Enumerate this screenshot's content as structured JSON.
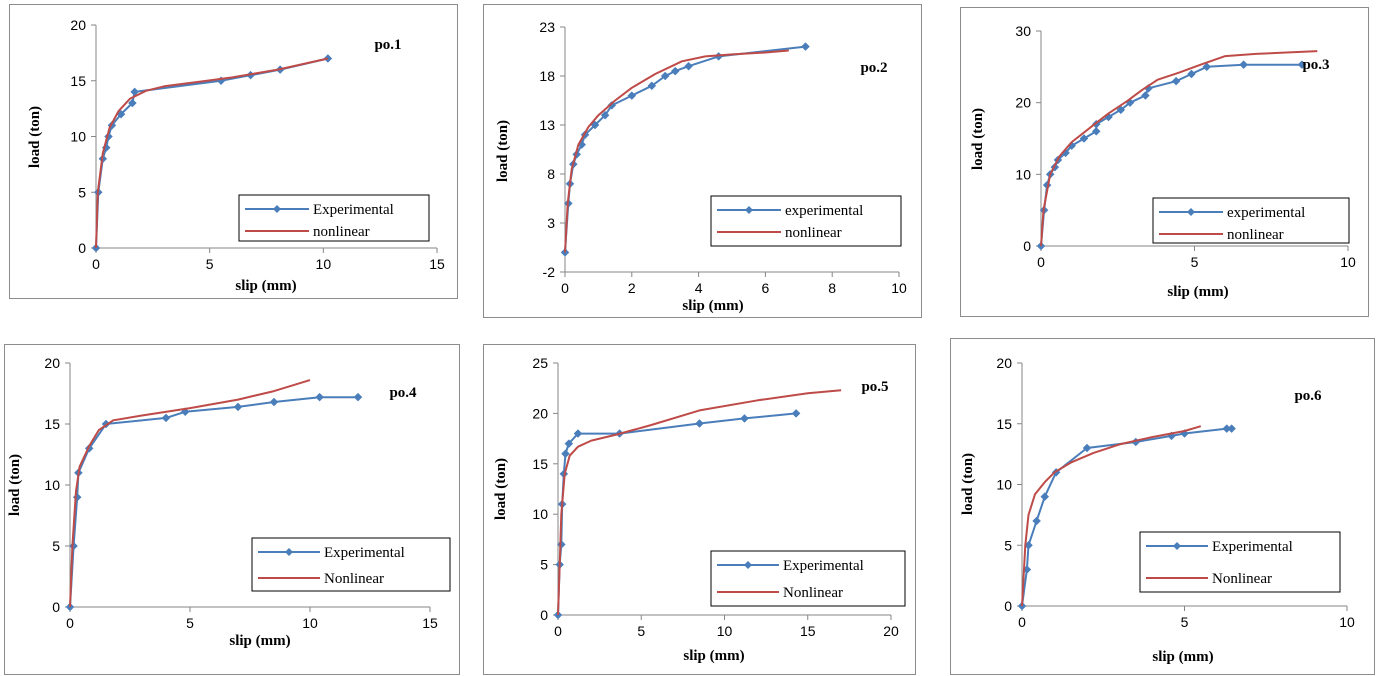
{
  "colors": {
    "experimental": "#4a7ebb",
    "nonlinear": "#be4b48",
    "axis": "#868686",
    "frame": "#8c8c8c"
  },
  "chart_data": [
    {
      "type": "line",
      "title": "po.1",
      "xlabel": "slip (mm)",
      "ylabel": "load (ton)",
      "xlim": [
        0,
        15
      ],
      "ylim": [
        0,
        20
      ],
      "xticks": [
        0,
        5,
        10,
        15
      ],
      "xtick_labels": [
        "0",
        "5",
        "10",
        "15"
      ],
      "yticks": [
        0,
        5,
        10,
        15,
        20
      ],
      "ytick_labels": [
        "0",
        "5",
        "10",
        "15",
        "20"
      ],
      "legend_position": "bottom-right",
      "series": [
        {
          "name": "Experimental",
          "marker": "diamond",
          "x": [
            0,
            0.1,
            0.3,
            0.45,
            0.55,
            0.7,
            1.1,
            1.6,
            1.7,
            5.5,
            6.8,
            8.1,
            10.2
          ],
          "y": [
            0,
            5,
            8,
            9,
            10,
            11,
            12,
            13,
            14,
            15,
            15.5,
            16,
            17
          ]
        },
        {
          "name": "nonlinear",
          "marker": "none",
          "x": [
            0,
            0.08,
            0.3,
            0.6,
            1.0,
            1.5,
            2.2,
            3.0,
            4.5,
            6.0,
            8.0,
            10.2
          ],
          "y": [
            0,
            5,
            8.5,
            10.8,
            12.3,
            13.4,
            14.1,
            14.5,
            14.9,
            15.3,
            16,
            17
          ]
        }
      ]
    },
    {
      "type": "line",
      "title": "po.2",
      "xlabel": "slip (mm)",
      "ylabel": "load (ton)",
      "xlim": [
        0,
        10
      ],
      "ylim": [
        -2,
        23
      ],
      "xticks": [
        0,
        2,
        4,
        6,
        8,
        10
      ],
      "xtick_labels": [
        "0",
        "2",
        "4",
        "6",
        "8",
        "10"
      ],
      "yticks": [
        -2,
        3,
        8,
        13,
        18,
        23
      ],
      "ytick_labels": [
        "-2",
        "3",
        "8",
        "13",
        "18",
        "23"
      ],
      "legend_position": "bottom-right",
      "series": [
        {
          "name": "experimental",
          "marker": "diamond",
          "x": [
            0,
            0.1,
            0.15,
            0.25,
            0.35,
            0.5,
            0.6,
            0.9,
            1.2,
            1.4,
            2.0,
            2.6,
            3.0,
            3.3,
            3.7,
            4.6,
            7.2
          ],
          "y": [
            0,
            5,
            7,
            9,
            10,
            11,
            12,
            13,
            14,
            15,
            16,
            17,
            18,
            18.5,
            19,
            20,
            21
          ]
        },
        {
          "name": "nonlinear",
          "marker": "none",
          "x": [
            0,
            0.08,
            0.2,
            0.4,
            0.7,
            1.0,
            1.5,
            2.0,
            2.7,
            3.5,
            4.2,
            5.0,
            6.0,
            6.7
          ],
          "y": [
            0,
            5,
            8.5,
            11,
            12.8,
            14,
            15.5,
            16.8,
            18.2,
            19.5,
            20,
            20.2,
            20.4,
            20.6
          ]
        }
      ]
    },
    {
      "type": "line",
      "title": "po.3",
      "xlabel": "slip (mm)",
      "ylabel": "load (ton)",
      "xlim": [
        0,
        10
      ],
      "ylim": [
        0,
        30
      ],
      "xticks": [
        0,
        5,
        10
      ],
      "xtick_labels": [
        "0",
        "5",
        "10"
      ],
      "yticks": [
        0,
        10,
        20,
        30
      ],
      "ytick_labels": [
        "0",
        "10",
        "20",
        "30"
      ],
      "legend_position": "bottom-right",
      "series": [
        {
          "name": "experimental",
          "marker": "diamond",
          "x": [
            0,
            0.1,
            0.2,
            0.3,
            0.45,
            0.55,
            0.8,
            1.0,
            1.4,
            1.8,
            1.8,
            2.2,
            2.6,
            2.9,
            3.4,
            3.5,
            4.4,
            4.9,
            5.4,
            6.6,
            8.5
          ],
          "y": [
            0,
            5,
            8.5,
            10,
            11,
            12,
            13,
            14,
            15,
            16,
            17,
            18,
            19,
            20,
            21,
            22,
            23,
            24,
            25,
            25.3,
            25.3
          ]
        },
        {
          "name": "nonlinear",
          "marker": "none",
          "x": [
            0,
            0.08,
            0.3,
            0.6,
            1.0,
            1.6,
            2.2,
            2.8,
            3.3,
            3.8,
            4.5,
            5.2,
            6.0,
            7.0,
            8.0,
            9.0
          ],
          "y": [
            0,
            5,
            10,
            12.5,
            14.5,
            16.5,
            18.5,
            20.2,
            21.8,
            23.2,
            24.2,
            25.3,
            26.5,
            26.8,
            27,
            27.2
          ]
        }
      ]
    },
    {
      "type": "line",
      "title": "po.4",
      "xlabel": "slip (mm)",
      "ylabel": "load (ton)",
      "xlim": [
        0,
        15
      ],
      "ylim": [
        0,
        20
      ],
      "xticks": [
        0,
        5,
        10,
        15
      ],
      "xtick_labels": [
        "0",
        "5",
        "10",
        "15"
      ],
      "yticks": [
        0,
        5,
        10,
        15,
        20
      ],
      "ytick_labels": [
        "0",
        "5",
        "10",
        "15",
        "20"
      ],
      "legend_position": "bottom-right",
      "series": [
        {
          "name": "Experimental",
          "marker": "diamond",
          "x": [
            0,
            0.15,
            0.3,
            0.35,
            0.8,
            1.5,
            4.0,
            4.8,
            7.0,
            8.5,
            10.4,
            12.0
          ],
          "y": [
            0,
            5,
            9,
            11,
            13,
            15,
            15.5,
            16,
            16.4,
            16.8,
            17.2,
            17.2
          ]
        },
        {
          "name": "Nonlinear",
          "marker": "none",
          "x": [
            0,
            0.1,
            0.25,
            0.4,
            0.8,
            1.2,
            1.8,
            3.0,
            5.0,
            7.0,
            8.5,
            10.0
          ],
          "y": [
            0,
            5,
            9.5,
            11.5,
            13.2,
            14.5,
            15.3,
            15.7,
            16.3,
            17,
            17.7,
            18.6
          ]
        }
      ]
    },
    {
      "type": "line",
      "title": "po.5",
      "xlabel": "slip (mm)",
      "ylabel": "load (ton)",
      "xlim": [
        0,
        20
      ],
      "ylim": [
        0,
        25
      ],
      "xticks": [
        0,
        5,
        10,
        15,
        20
      ],
      "xtick_labels": [
        "0",
        "5",
        "10",
        "15",
        "20"
      ],
      "yticks": [
        0,
        5,
        10,
        15,
        20,
        25
      ],
      "ytick_labels": [
        "0",
        "5",
        "10",
        "15",
        "20",
        "25"
      ],
      "legend_position": "bottom-right",
      "series": [
        {
          "name": "Experimental",
          "marker": "diamond",
          "x": [
            0,
            0.1,
            0.2,
            0.25,
            0.35,
            0.45,
            0.65,
            1.2,
            3.7,
            8.5,
            11.2,
            14.3
          ],
          "y": [
            0,
            5,
            7,
            11,
            14,
            16,
            17,
            18,
            18,
            19,
            19.5,
            20
          ]
        },
        {
          "name": "Nonlinear",
          "marker": "none",
          "x": [
            0,
            0.1,
            0.2,
            0.4,
            0.7,
            1.2,
            2.0,
            3.5,
            5.5,
            8.5,
            12.0,
            15.0,
            17.0
          ],
          "y": [
            0,
            5,
            10,
            14,
            15.8,
            16.7,
            17.3,
            17.9,
            18.8,
            20.3,
            21.3,
            22,
            22.3
          ]
        }
      ]
    },
    {
      "type": "line",
      "title": "po.6",
      "xlabel": "slip (mm)",
      "ylabel": "load (ton)",
      "xlim": [
        0,
        10
      ],
      "ylim": [
        0,
        20
      ],
      "xticks": [
        0,
        5,
        10
      ],
      "xtick_labels": [
        "0",
        "5",
        "10"
      ],
      "yticks": [
        0,
        5,
        10,
        15,
        20
      ],
      "ytick_labels": [
        "0",
        "5",
        "10",
        "15",
        "20"
      ],
      "legend_position": "bottom-right",
      "series": [
        {
          "name": "Experimental",
          "marker": "diamond",
          "x": [
            0,
            0.15,
            0.2,
            0.45,
            0.7,
            1.05,
            2.0,
            3.5,
            4.6,
            5.0,
            6.3,
            6.45
          ],
          "y": [
            0,
            3,
            5,
            7,
            9,
            11,
            13,
            13.5,
            14,
            14.2,
            14.6,
            14.6
          ]
        },
        {
          "name": "Nonlinear",
          "marker": "none",
          "x": [
            0,
            0.1,
            0.2,
            0.4,
            0.7,
            1.0,
            1.5,
            2.2,
            3.0,
            4.0,
            5.0,
            5.5
          ],
          "y": [
            0,
            5,
            7.5,
            9.2,
            10.2,
            11,
            11.8,
            12.6,
            13.3,
            13.9,
            14.4,
            14.8
          ]
        }
      ]
    }
  ]
}
